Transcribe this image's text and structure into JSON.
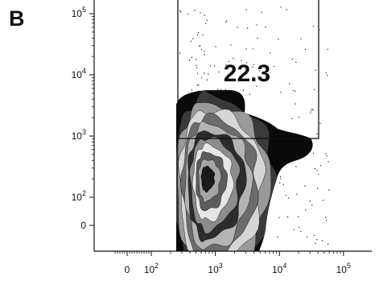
{
  "panel": {
    "label": "B"
  },
  "chart_data": {
    "type": "density-contour",
    "title": "",
    "xlabel": "",
    "ylabel": "",
    "x_scale": "biexponential",
    "y_scale": "biexponential",
    "x_ticks": [
      {
        "label": "0",
        "value": 0
      },
      {
        "label": "10^2",
        "value": 100
      },
      {
        "label": "10^3",
        "value": 1000
      },
      {
        "label": "10^4",
        "value": 10000
      },
      {
        "label": "10^5",
        "value": 100000
      }
    ],
    "y_ticks": [
      {
        "label": "0",
        "value": 0
      },
      {
        "label": "10^2",
        "value": 100
      },
      {
        "label": "10^3",
        "value": 1000
      },
      {
        "label": "10^4",
        "value": 10000
      },
      {
        "label": "10^5",
        "value": 100000
      }
    ],
    "gate": {
      "shape": "rectangle",
      "percentage": "22.3",
      "x_range": [
        200,
        30000
      ],
      "y_range": [
        800,
        200000
      ]
    },
    "population": {
      "x_range": [
        200,
        30000
      ],
      "y_range": [
        0,
        5000
      ],
      "peak": {
        "x": 700,
        "y": 500
      },
      "shading": "concentric grayscale contours, darkest at outer edge"
    },
    "grid": false,
    "legend": "none"
  }
}
